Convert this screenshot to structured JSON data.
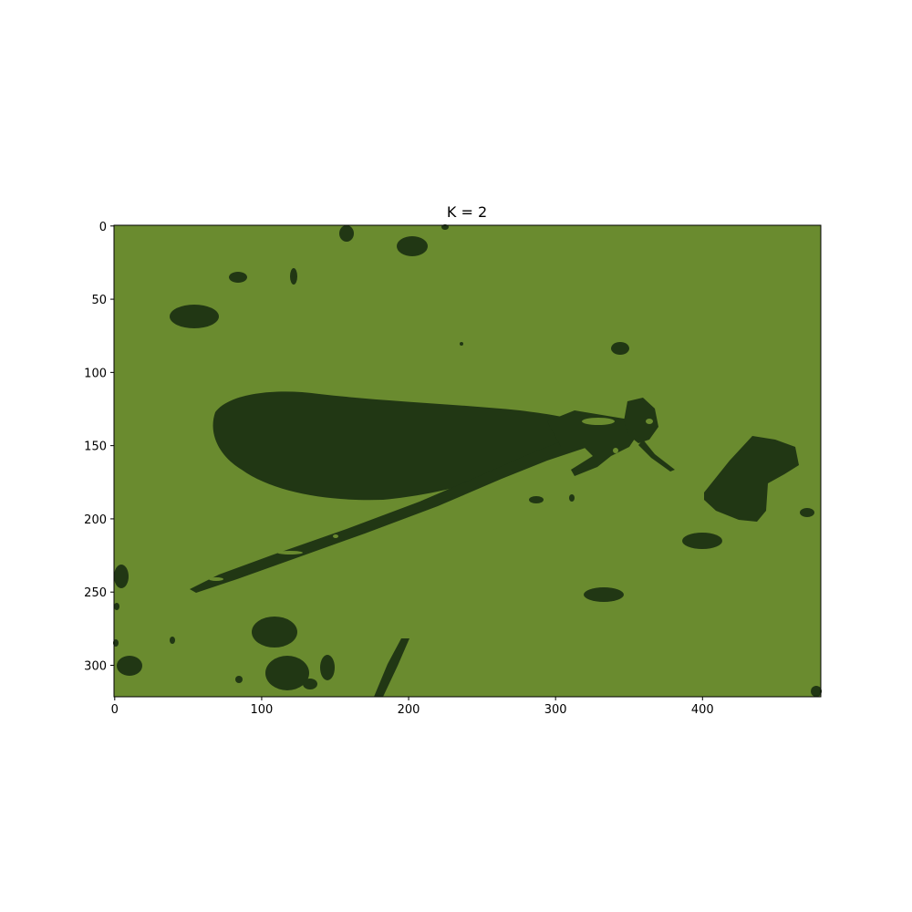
{
  "title": "K = 2",
  "image": {
    "rows": 322,
    "cols": 481,
    "palette": {
      "background": "#6a8b2f",
      "foreground": "#213714"
    }
  },
  "axes": {
    "x": {
      "ticks": [
        0,
        100,
        200,
        300,
        400
      ],
      "labels": [
        "0",
        "100",
        "200",
        "300",
        "400"
      ]
    },
    "y": {
      "ticks": [
        0,
        50,
        100,
        150,
        200,
        250,
        300
      ],
      "labels": [
        "0",
        "50",
        "100",
        "150",
        "200",
        "250",
        "300"
      ]
    }
  }
}
